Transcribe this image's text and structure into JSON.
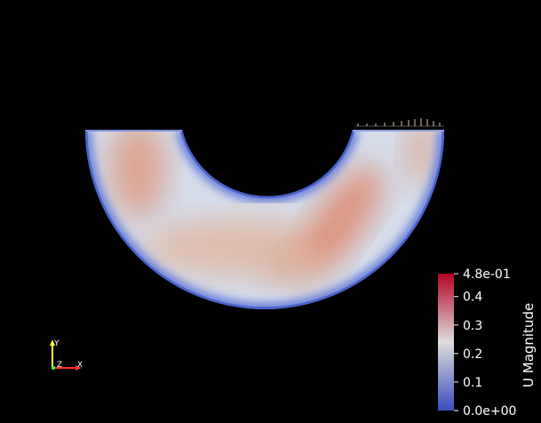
{
  "colorbar": {
    "title": "U Magnitude",
    "max_label": "4.8e-01",
    "min_label": "0.0e+00",
    "range": [
      0,
      0.48
    ],
    "ticks": [
      {
        "value": 0.1,
        "label": "0.1"
      },
      {
        "value": 0.2,
        "label": "0.2"
      },
      {
        "value": 0.3,
        "label": "0.3"
      },
      {
        "value": 0.4,
        "label": "0.4"
      }
    ],
    "colors": {
      "low": "#3b4cc0",
      "mid": "#dddddd",
      "high": "#b40426"
    }
  },
  "orientation_axes": {
    "x": {
      "label": "X",
      "color": "#ff3333"
    },
    "y": {
      "label": "Y",
      "color": "#ffff33"
    },
    "z": {
      "label": "Z",
      "color": "#33ff33"
    }
  },
  "background": "#000000"
}
